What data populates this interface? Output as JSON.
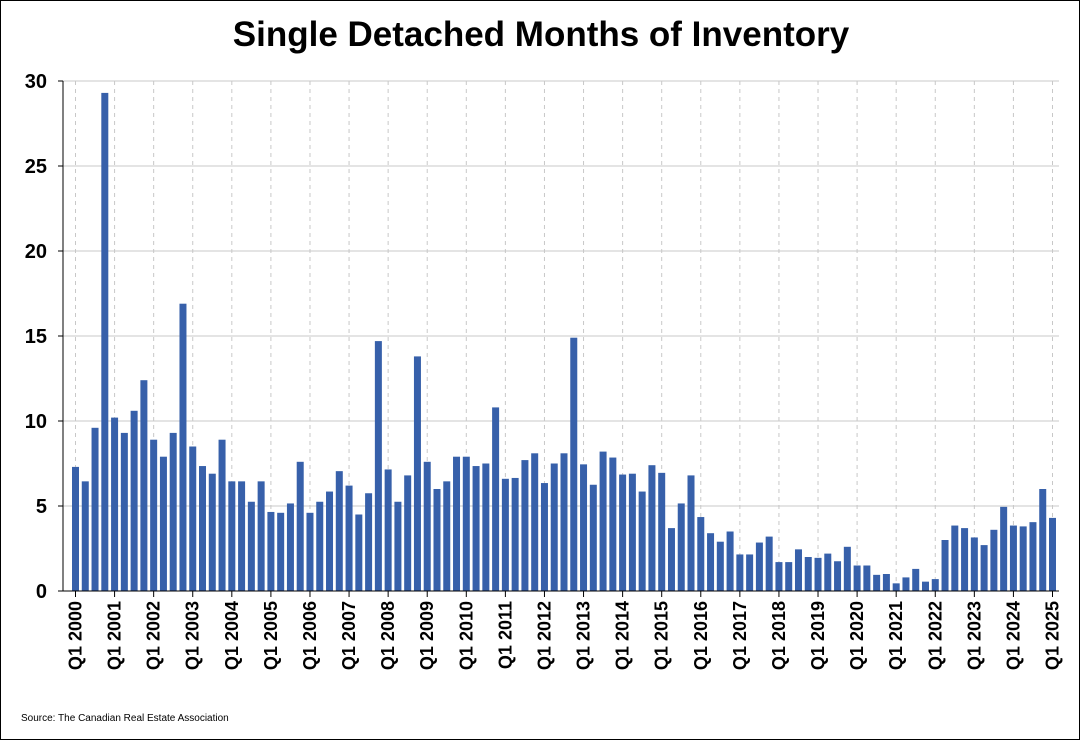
{
  "chart_data": {
    "type": "bar",
    "title": "Single Detached Months of Inventory",
    "xlabel": "",
    "ylabel": "",
    "ylim": [
      0,
      30
    ],
    "yticks": [
      0,
      5,
      10,
      15,
      20,
      25,
      30
    ],
    "x_tick_labels": [
      "Q1 2000",
      "Q1 2001",
      "Q1 2002",
      "Q1 2003",
      "Q1 2004",
      "Q1 2005",
      "Q1 2006",
      "Q1 2007",
      "Q1 2008",
      "Q1 2009",
      "Q1 2010",
      "Q1 2011",
      "Q1 2012",
      "Q1 2013",
      "Q1 2014",
      "Q1 2015",
      "Q1 2016",
      "Q1 2017",
      "Q1 2018",
      "Q1 2019",
      "Q1 2020",
      "Q1 2021",
      "Q1 2022",
      "Q1 2023",
      "Q1 2024",
      "Q1 2025"
    ],
    "grid": true,
    "bar_color": "#3760AA",
    "categories": [
      "Q1 2000",
      "Q2 2000",
      "Q3 2000",
      "Q4 2000",
      "Q1 2001",
      "Q2 2001",
      "Q3 2001",
      "Q4 2001",
      "Q1 2002",
      "Q2 2002",
      "Q3 2002",
      "Q4 2002",
      "Q1 2003",
      "Q2 2003",
      "Q3 2003",
      "Q4 2003",
      "Q1 2004",
      "Q2 2004",
      "Q3 2004",
      "Q4 2004",
      "Q1 2005",
      "Q2 2005",
      "Q3 2005",
      "Q4 2005",
      "Q1 2006",
      "Q2 2006",
      "Q3 2006",
      "Q4 2006",
      "Q1 2007",
      "Q2 2007",
      "Q3 2007",
      "Q4 2007",
      "Q1 2008",
      "Q2 2008",
      "Q3 2008",
      "Q4 2008",
      "Q1 2009",
      "Q2 2009",
      "Q3 2009",
      "Q4 2009",
      "Q1 2010",
      "Q2 2010",
      "Q3 2010",
      "Q4 2010",
      "Q1 2011",
      "Q2 2011",
      "Q3 2011",
      "Q4 2011",
      "Q1 2012",
      "Q2 2012",
      "Q3 2012",
      "Q4 2012",
      "Q1 2013",
      "Q2 2013",
      "Q3 2013",
      "Q4 2013",
      "Q1 2014",
      "Q2 2014",
      "Q3 2014",
      "Q4 2014",
      "Q1 2015",
      "Q2 2015",
      "Q3 2015",
      "Q4 2015",
      "Q1 2016",
      "Q2 2016",
      "Q3 2016",
      "Q4 2016",
      "Q1 2017",
      "Q2 2017",
      "Q3 2017",
      "Q4 2017",
      "Q1 2018",
      "Q2 2018",
      "Q3 2018",
      "Q4 2018",
      "Q1 2019",
      "Q2 2019",
      "Q3 2019",
      "Q4 2019",
      "Q1 2020",
      "Q2 2020",
      "Q3 2020",
      "Q4 2020",
      "Q1 2021",
      "Q2 2021",
      "Q3 2021",
      "Q4 2021",
      "Q1 2022",
      "Q2 2022",
      "Q3 2022",
      "Q4 2022",
      "Q1 2023",
      "Q2 2023",
      "Q3 2023",
      "Q4 2023",
      "Q1 2024",
      "Q2 2024",
      "Q3 2024",
      "Q4 2024",
      "Q1 2025"
    ],
    "values": [
      7.3,
      6.45,
      9.6,
      29.3,
      10.2,
      9.3,
      10.6,
      12.4,
      8.9,
      7.9,
      9.3,
      16.9,
      8.5,
      7.35,
      6.9,
      8.9,
      6.45,
      6.45,
      5.25,
      6.45,
      4.65,
      4.6,
      5.15,
      7.6,
      4.6,
      5.25,
      5.85,
      7.05,
      6.2,
      4.5,
      5.75,
      14.7,
      7.15,
      5.25,
      6.8,
      13.8,
      7.6,
      6.0,
      6.45,
      7.9,
      7.9,
      7.35,
      7.5,
      10.8,
      6.6,
      6.65,
      7.7,
      8.1,
      6.35,
      7.5,
      8.1,
      14.9,
      7.45,
      6.25,
      8.2,
      7.85,
      6.85,
      6.9,
      5.85,
      7.4,
      6.95,
      3.7,
      5.15,
      6.8,
      4.35,
      3.4,
      2.9,
      3.5,
      2.15,
      2.15,
      2.85,
      3.2,
      1.7,
      1.7,
      2.45,
      2.0,
      1.95,
      2.2,
      1.75,
      2.6,
      1.5,
      1.5,
      0.95,
      1.0,
      0.45,
      0.8,
      1.3,
      0.55,
      0.7,
      3.0,
      3.85,
      3.7,
      3.15,
      2.7,
      3.6,
      4.95,
      3.85,
      3.8,
      4.05,
      6.0,
      4.3
    ]
  },
  "source_note": "Source: The Canadian Real Estate Association"
}
